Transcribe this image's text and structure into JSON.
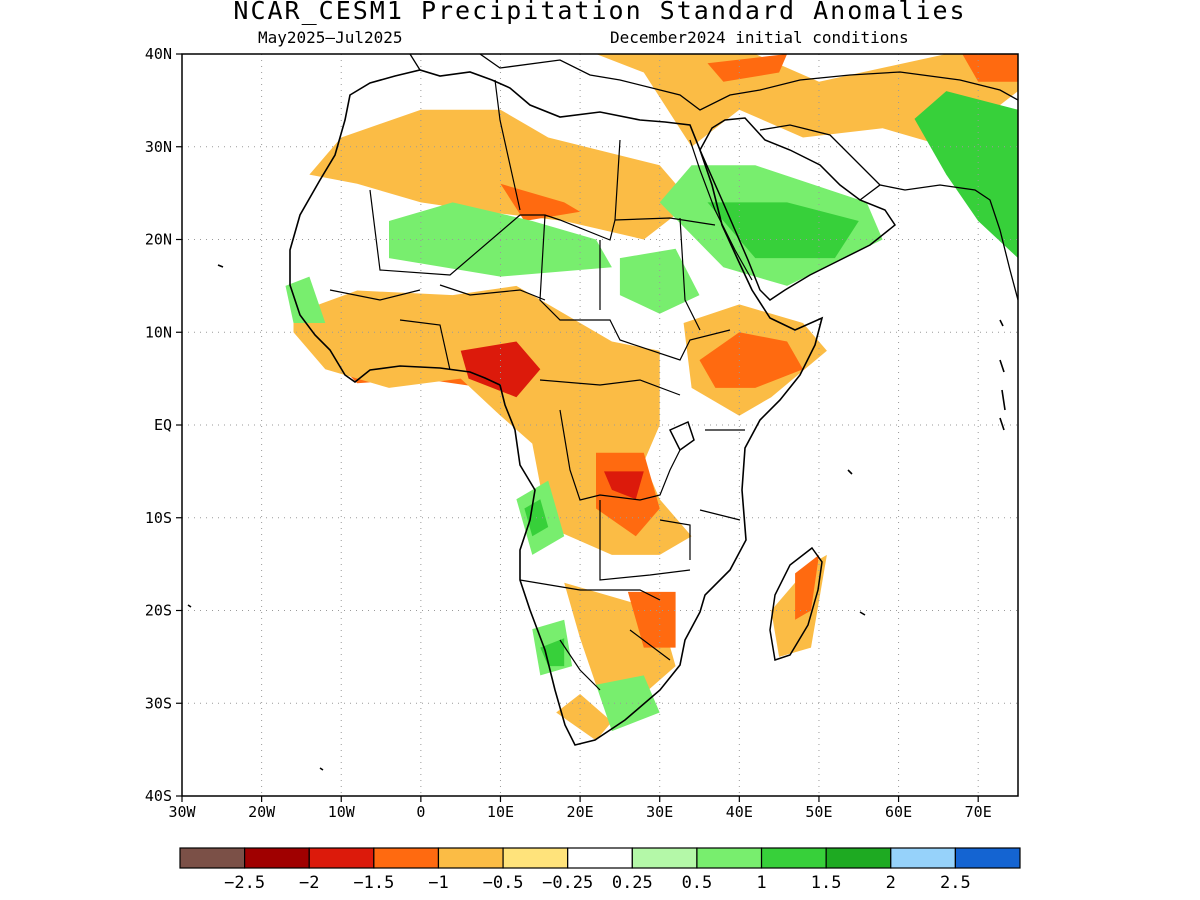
{
  "title": "NCAR_CESM1 Precipitation Standard Anomalies",
  "subtitle_left": "May2025–Jul2025",
  "subtitle_right": "December2024 initial conditions",
  "map": {
    "lon_range": [
      -30,
      75
    ],
    "lat_range": [
      -40,
      40
    ],
    "lon_ticks": [
      {
        "value": -30,
        "label": "30W"
      },
      {
        "value": -20,
        "label": "20W"
      },
      {
        "value": -10,
        "label": "10W"
      },
      {
        "value": 0,
        "label": "0"
      },
      {
        "value": 10,
        "label": "10E"
      },
      {
        "value": 20,
        "label": "20E"
      },
      {
        "value": 30,
        "label": "30E"
      },
      {
        "value": 40,
        "label": "40E"
      },
      {
        "value": 50,
        "label": "50E"
      },
      {
        "value": 60,
        "label": "60E"
      },
      {
        "value": 70,
        "label": "70E"
      }
    ],
    "lat_ticks": [
      {
        "value": 40,
        "label": "40N"
      },
      {
        "value": 30,
        "label": "30N"
      },
      {
        "value": 20,
        "label": "20N"
      },
      {
        "value": 10,
        "label": "10N"
      },
      {
        "value": 0,
        "label": "EQ"
      },
      {
        "value": -10,
        "label": "10S"
      },
      {
        "value": -20,
        "label": "20S"
      },
      {
        "value": -30,
        "label": "30S"
      },
      {
        "value": -40,
        "label": "40S"
      }
    ],
    "grid": true
  },
  "colorbar": {
    "colors": [
      "#7b5047",
      "#a00000",
      "#dc1a0b",
      "#ff6a10",
      "#fbbc45",
      "#ffe37b",
      "#ffffff",
      "#b4f8a8",
      "#78ee6e",
      "#37d03a",
      "#1eaa22",
      "#96d2fa",
      "#1464d2"
    ],
    "labels": [
      "−2.5",
      "−2",
      "−1.5",
      "−1",
      "−0.5",
      "−0.25",
      "0.25",
      "0.5",
      "1",
      "1.5",
      "2",
      "2.5"
    ]
  },
  "anomaly_regions": [
    {
      "level": -1,
      "lonlat": [
        [
          -12,
          11
        ],
        [
          -6,
          13
        ],
        [
          2,
          12
        ],
        [
          10,
          13.5
        ],
        [
          14,
          11
        ],
        [
          16,
          7
        ],
        [
          24,
          7
        ],
        [
          30,
          5
        ],
        [
          28,
          3
        ],
        [
          20,
          3
        ],
        [
          14,
          1
        ],
        [
          8,
          4
        ],
        [
          0,
          5
        ],
        [
          -8,
          4.5
        ],
        [
          -12,
          8
        ]
      ]
    },
    {
      "level": -0.5,
      "lonlat": [
        [
          -16,
          12
        ],
        [
          -8,
          14.5
        ],
        [
          4,
          14
        ],
        [
          12,
          15
        ],
        [
          16,
          13
        ],
        [
          24,
          9
        ],
        [
          30,
          8
        ],
        [
          30,
          0
        ],
        [
          28,
          -4
        ],
        [
          30,
          -8
        ],
        [
          34,
          -12
        ],
        [
          30,
          -14
        ],
        [
          24,
          -14
        ],
        [
          16,
          -11
        ],
        [
          14,
          -2
        ],
        [
          10,
          1
        ],
        [
          5,
          5
        ],
        [
          -4,
          4
        ],
        [
          -12,
          6
        ],
        [
          -16,
          10
        ]
      ]
    },
    {
      "level": -1,
      "lonlat": [
        [
          22,
          -3
        ],
        [
          28,
          -3
        ],
        [
          30,
          -9
        ],
        [
          27,
          -12
        ],
        [
          22,
          -9
        ]
      ]
    },
    {
      "level": -1.5,
      "lonlat": [
        [
          5,
          8
        ],
        [
          12,
          9
        ],
        [
          15,
          6
        ],
        [
          12,
          3
        ],
        [
          6,
          5
        ]
      ]
    },
    {
      "level": -1.5,
      "lonlat": [
        [
          23,
          -5
        ],
        [
          28,
          -5
        ],
        [
          27,
          -8
        ],
        [
          24,
          -7
        ]
      ]
    },
    {
      "level": -0.5,
      "lonlat": [
        [
          33,
          11
        ],
        [
          40,
          13
        ],
        [
          48,
          11
        ],
        [
          51,
          8
        ],
        [
          44,
          3
        ],
        [
          40,
          1
        ],
        [
          34,
          4
        ]
      ]
    },
    {
      "level": -1,
      "lonlat": [
        [
          35,
          7
        ],
        [
          40,
          10
        ],
        [
          46,
          9
        ],
        [
          48,
          6
        ],
        [
          42,
          4
        ],
        [
          37,
          4
        ]
      ]
    },
    {
      "level": -0.5,
      "lonlat": [
        [
          -10,
          31
        ],
        [
          0,
          34
        ],
        [
          10,
          34
        ],
        [
          16,
          31
        ],
        [
          30,
          28
        ],
        [
          34,
          24
        ],
        [
          28,
          20
        ],
        [
          18,
          22
        ],
        [
          8,
          23
        ],
        [
          0,
          24
        ],
        [
          -8,
          26
        ],
        [
          -14,
          27
        ]
      ]
    },
    {
      "level": -1,
      "lonlat": [
        [
          10,
          26
        ],
        [
          18,
          24
        ],
        [
          20,
          23
        ],
        [
          13,
          22
        ]
      ]
    },
    {
      "level": -0.5,
      "lonlat": [
        [
          18,
          -17
        ],
        [
          30,
          -20
        ],
        [
          32,
          -26
        ],
        [
          28,
          -29
        ],
        [
          22,
          -28
        ],
        [
          20,
          -23
        ]
      ]
    },
    {
      "level": -1,
      "lonlat": [
        [
          26,
          -18
        ],
        [
          32,
          -18
        ],
        [
          32,
          -24
        ],
        [
          28,
          -24
        ]
      ]
    },
    {
      "level": -0.5,
      "lonlat": [
        [
          44,
          -20
        ],
        [
          49,
          -15
        ],
        [
          51,
          -14
        ],
        [
          49,
          -24
        ],
        [
          45,
          -25
        ]
      ]
    },
    {
      "level": -1,
      "lonlat": [
        [
          47,
          -16
        ],
        [
          50,
          -14
        ],
        [
          49,
          -20
        ],
        [
          47,
          -21
        ]
      ]
    },
    {
      "level": -0.5,
      "lonlat": [
        [
          17,
          -31
        ],
        [
          22,
          -34
        ],
        [
          24,
          -32
        ],
        [
          20,
          -29
        ]
      ]
    },
    {
      "level": -0.5,
      "lonlat": [
        [
          22,
          40
        ],
        [
          42,
          40
        ],
        [
          50,
          37
        ],
        [
          66,
          40
        ],
        [
          75,
          40
        ],
        [
          75,
          36
        ],
        [
          66,
          30
        ],
        [
          58,
          32
        ],
        [
          48,
          31
        ],
        [
          40,
          34
        ],
        [
          34,
          30
        ],
        [
          28,
          38
        ]
      ]
    },
    {
      "level": -1,
      "lonlat": [
        [
          36,
          39
        ],
        [
          46,
          40
        ],
        [
          45,
          38
        ],
        [
          38,
          37
        ]
      ]
    },
    {
      "level": -1,
      "lonlat": [
        [
          68,
          40
        ],
        [
          75,
          40
        ],
        [
          75,
          37
        ],
        [
          70,
          37
        ]
      ]
    },
    {
      "level": 0.5,
      "lonlat": [
        [
          -4,
          22
        ],
        [
          4,
          24
        ],
        [
          14,
          22
        ],
        [
          22,
          20
        ],
        [
          24,
          17
        ],
        [
          10,
          16
        ],
        [
          -4,
          18
        ]
      ]
    },
    {
      "level": 0.5,
      "lonlat": [
        [
          34,
          28
        ],
        [
          42,
          28
        ],
        [
          56,
          24
        ],
        [
          58,
          20
        ],
        [
          46,
          15
        ],
        [
          38,
          17
        ],
        [
          30,
          24
        ]
      ]
    },
    {
      "level": 1,
      "lonlat": [
        [
          36,
          24
        ],
        [
          46,
          24
        ],
        [
          55,
          22
        ],
        [
          52,
          18
        ],
        [
          42,
          18
        ]
      ]
    },
    {
      "level": 1,
      "lonlat": [
        [
          62,
          33
        ],
        [
          66,
          36
        ],
        [
          75,
          34
        ],
        [
          75,
          18
        ],
        [
          70,
          22
        ],
        [
          66,
          27
        ]
      ]
    },
    {
      "level": 0.5,
      "lonlat": [
        [
          25,
          18
        ],
        [
          32,
          19
        ],
        [
          35,
          14
        ],
        [
          30,
          12
        ],
        [
          25,
          14
        ]
      ]
    },
    {
      "level": 0.5,
      "lonlat": [
        [
          12,
          -8
        ],
        [
          16,
          -6
        ],
        [
          18,
          -12
        ],
        [
          14,
          -14
        ]
      ]
    },
    {
      "level": 1,
      "lonlat": [
        [
          13,
          -9
        ],
        [
          15,
          -8
        ],
        [
          16,
          -11
        ],
        [
          14,
          -12
        ]
      ]
    },
    {
      "level": 0.5,
      "lonlat": [
        [
          14,
          -22
        ],
        [
          18,
          -21
        ],
        [
          19,
          -26
        ],
        [
          15,
          -27
        ]
      ]
    },
    {
      "level": 1,
      "lonlat": [
        [
          15,
          -24
        ],
        [
          18,
          -23
        ],
        [
          18,
          -26
        ],
        [
          16,
          -26
        ]
      ]
    },
    {
      "level": 0.5,
      "lonlat": [
        [
          22,
          -28
        ],
        [
          28,
          -27
        ],
        [
          30,
          -31
        ],
        [
          24,
          -33
        ]
      ]
    },
    {
      "level": 0.5,
      "lonlat": [
        [
          -17,
          15
        ],
        [
          -14,
          16
        ],
        [
          -12,
          11
        ],
        [
          -16,
          11
        ]
      ]
    }
  ]
}
